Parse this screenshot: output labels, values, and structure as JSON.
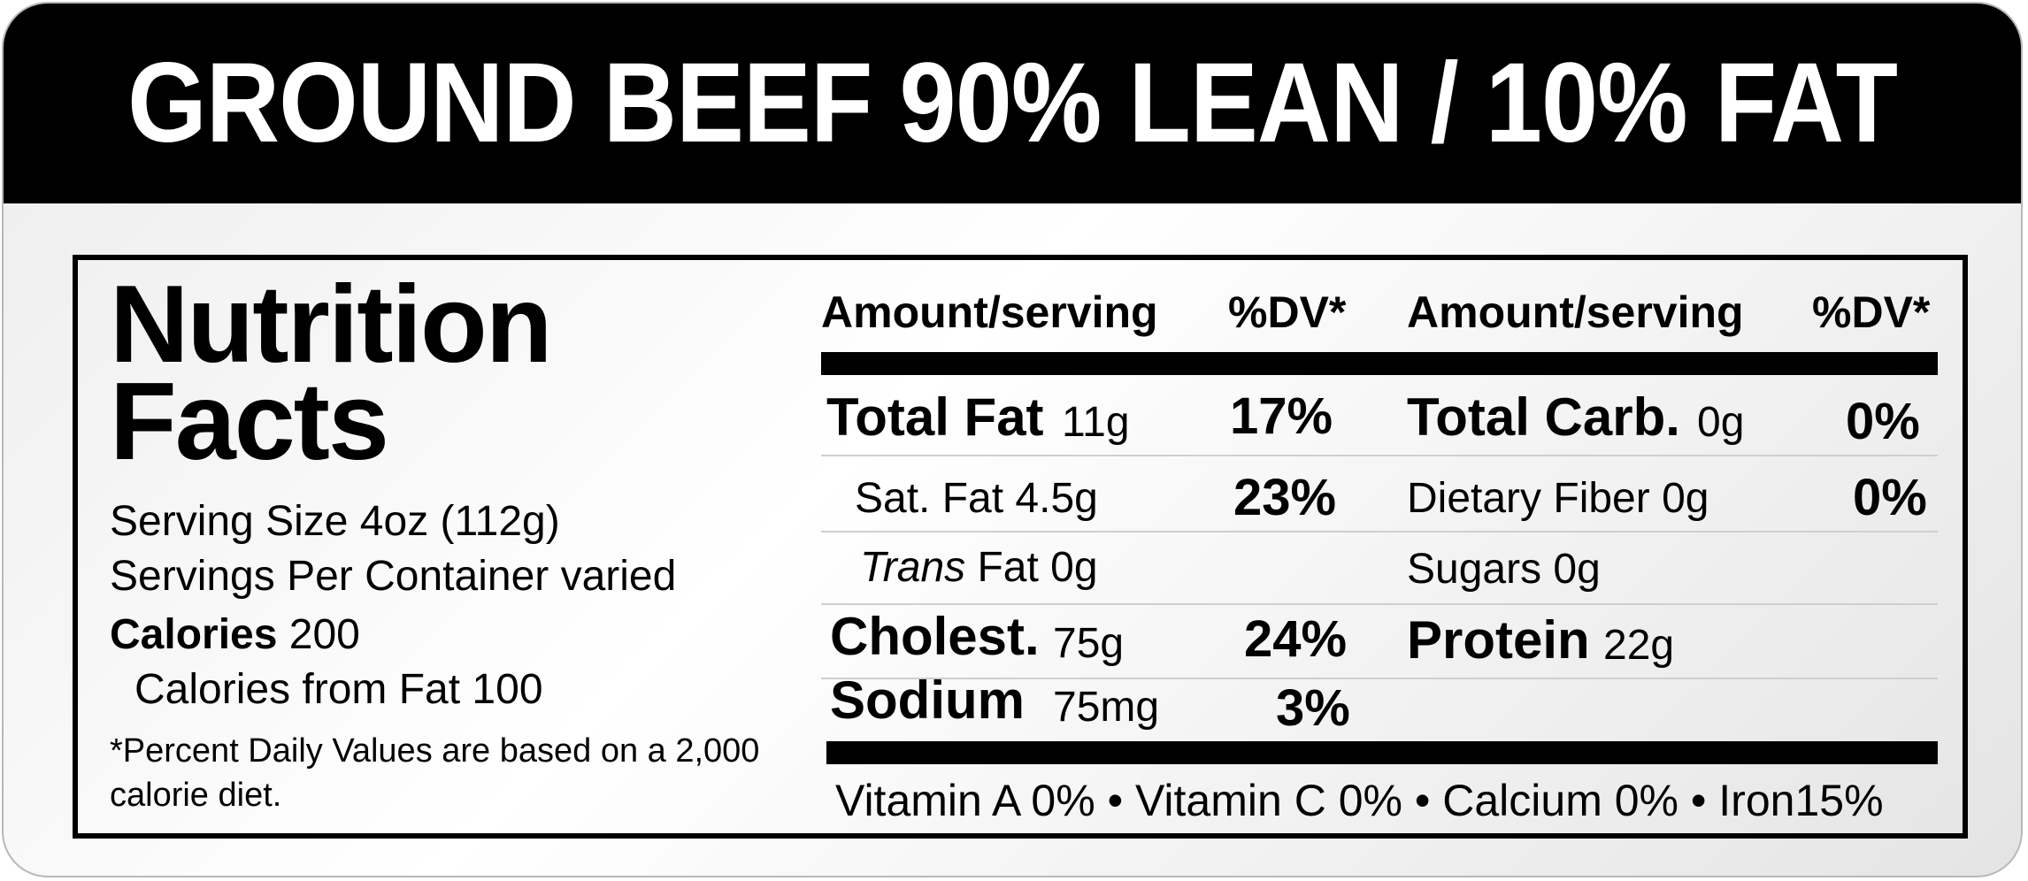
{
  "banner": {
    "title": "GROUND BEEF 90% LEAN / 10% FAT"
  },
  "facts": {
    "title_line1": "Nutrition",
    "title_line2": "Facts",
    "serving_size": "Serving Size 4oz (112g)",
    "servings_per_container": "Servings Per Container varied",
    "calories_label": "Calories",
    "calories_value": "200",
    "calories_from_fat": "Calories from Fat 100",
    "footnote": "*Percent Daily Values are based on a 2,000 calorie diet."
  },
  "headers": {
    "amount_left": "Amount/serving",
    "dv_left": "%DV*",
    "amount_right": "Amount/serving",
    "dv_right": "%DV*"
  },
  "left_rows": {
    "total_fat": {
      "name": "Total Fat",
      "amount": "11g",
      "dv": "17%"
    },
    "sat_fat": {
      "name": "Sat. Fat 4.5g",
      "dv": "23%"
    },
    "trans_fat": {
      "name_italic": "Trans",
      "name_rest": " Fat 0g"
    },
    "cholest": {
      "name": "Cholest.",
      "amount": "75g",
      "dv": "24%"
    },
    "sodium": {
      "name": "Sodium",
      "amount": "75mg",
      "dv": "3%"
    }
  },
  "right_rows": {
    "total_carb": {
      "name": "Total Carb.",
      "amount": "0g",
      "dv": "0%"
    },
    "fiber": {
      "name": "Dietary Fiber 0g",
      "dv": "0%"
    },
    "sugars": {
      "name": "Sugars 0g"
    },
    "protein": {
      "name": "Protein",
      "amount": "22g"
    }
  },
  "vitamins": "Vitamin A 0% • Vitamin C 0% • Calcium 0% • Iron15%"
}
